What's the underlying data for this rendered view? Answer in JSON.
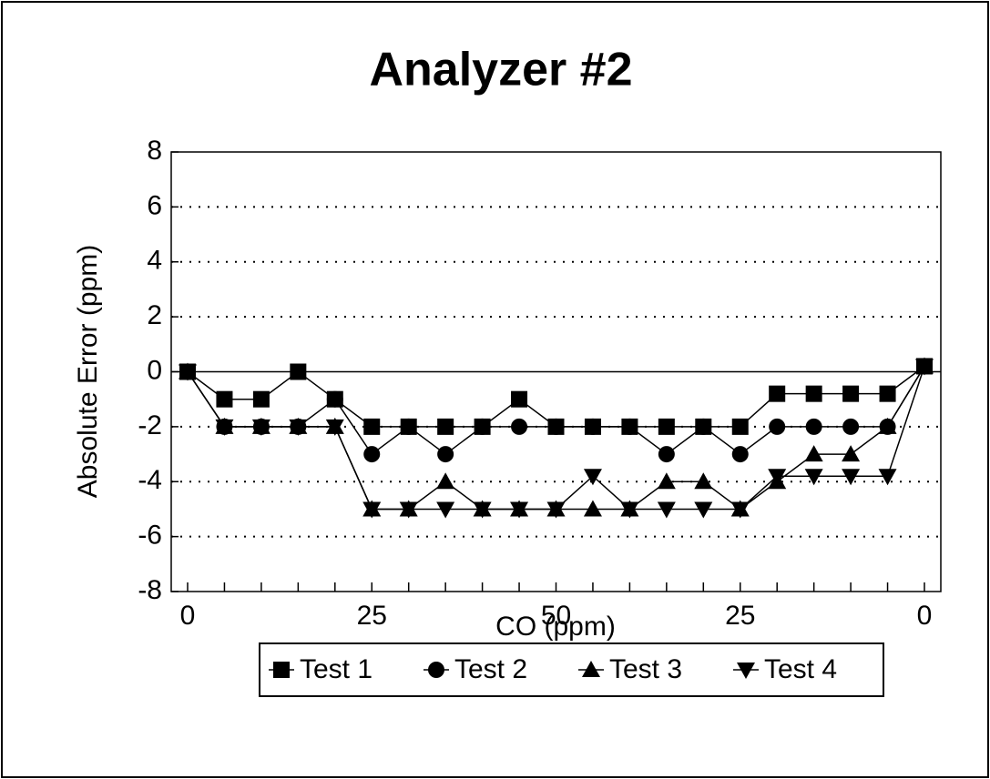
{
  "chart_data": {
    "type": "line",
    "title": "Analyzer #2",
    "x_label": "CO (ppm)",
    "y_label": "Absolute Error (ppm)",
    "categories": [
      "0",
      null,
      null,
      null,
      null,
      "25",
      null,
      null,
      null,
      null,
      "50",
      null,
      null,
      null,
      null,
      "25",
      null,
      null,
      null,
      null,
      "0"
    ],
    "ylim": [
      -8,
      8
    ],
    "yticks": [
      -8,
      -6,
      -4,
      -2,
      0,
      2,
      4,
      6,
      8
    ],
    "grid": true,
    "legend": "bottom",
    "series": [
      {
        "name": "Test 1",
        "color": "#000000",
        "marker": "square",
        "values": [
          0,
          -1,
          -1,
          0,
          -1,
          -2,
          -2,
          -2,
          -2,
          -1,
          -2,
          -2,
          -2,
          -2,
          -2,
          -2,
          -0.8,
          -0.8,
          -0.8,
          -0.8,
          0.2
        ]
      },
      {
        "name": "Test 2",
        "color": "#000000",
        "marker": "circle",
        "values": [
          0,
          -2,
          -2,
          -2,
          -1,
          -3,
          -2,
          -3,
          -2,
          -2,
          -2,
          -2,
          -2,
          -3,
          -2,
          -3,
          -2,
          -2,
          -2,
          -2,
          0.2
        ]
      },
      {
        "name": "Test 3",
        "color": "#000000",
        "marker": "triangle-up",
        "values": [
          0,
          -2,
          -2,
          -2,
          -2,
          -5,
          -5,
          -4,
          -5,
          -5,
          -5,
          -5,
          -5,
          -4,
          -4,
          -5,
          -4,
          -3,
          -3,
          -2,
          0.2
        ]
      },
      {
        "name": "Test 4",
        "color": "#000000",
        "marker": "triangle-down",
        "values": [
          0,
          -2,
          -2,
          -2,
          -2,
          -5,
          -5,
          -5,
          -5,
          -5,
          -5,
          -3.8,
          -5,
          -5,
          -5,
          -5,
          -3.8,
          -3.8,
          -3.8,
          -3.8,
          0.2
        ]
      }
    ]
  }
}
